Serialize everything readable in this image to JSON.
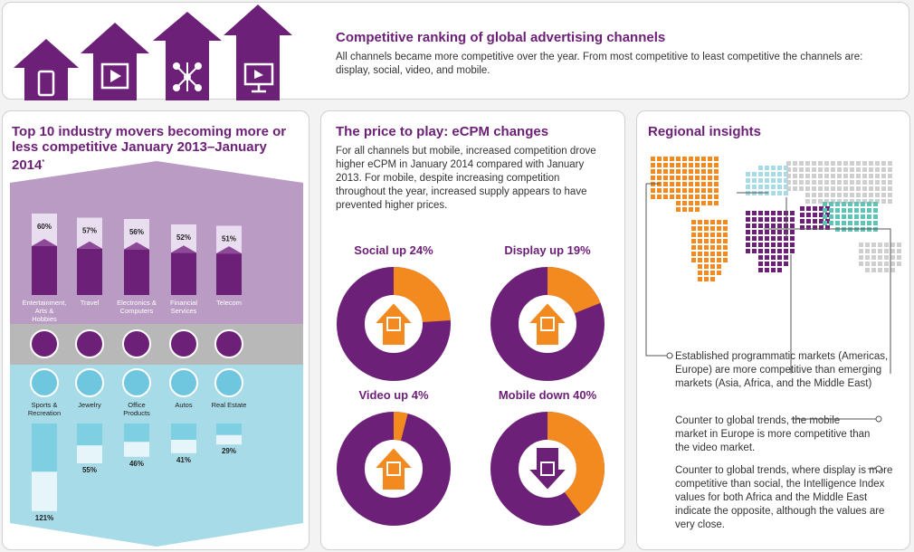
{
  "header": {
    "title": "Competitive ranking of global advertising channels",
    "text": "All channels became more competitive over the year. From most competitive to least competitive the channels are: display, social, video, and mobile.",
    "icons": [
      "mobile-icon",
      "video-icon",
      "social-network-icon",
      "display-monitor-icon"
    ]
  },
  "movers": {
    "title": "Top 10 industry movers becoming more or less competitive January 2013–January 2014",
    "footnote_mark": "*",
    "more": [
      {
        "label": "Entertainment, Arts & Hobbies",
        "pct": "60%",
        "value": 60,
        "icon": "palette-icon"
      },
      {
        "label": "Travel",
        "pct": "57%",
        "value": 57,
        "icon": "airplane-icon"
      },
      {
        "label": "Electronics & Computers",
        "pct": "56%",
        "value": 56,
        "icon": "computer-icon"
      },
      {
        "label": "Financial Services",
        "pct": "52%",
        "value": 52,
        "icon": "money-bag-icon"
      },
      {
        "label": "Telecom",
        "pct": "51%",
        "value": 51,
        "icon": "phone-icon"
      }
    ],
    "less": [
      {
        "label": "Sports & Recreation",
        "pct": "121%",
        "value": 121,
        "icon": "soccer-ball-icon"
      },
      {
        "label": "Jewelry",
        "pct": "55%",
        "value": 55,
        "icon": "ring-icon"
      },
      {
        "label": "Office Products",
        "pct": "46%",
        "value": 46,
        "icon": "paper-icon"
      },
      {
        "label": "Autos",
        "pct": "41%",
        "value": 41,
        "icon": "car-icon"
      },
      {
        "label": "Real Estate",
        "pct": "29%",
        "value": 29,
        "icon": "house-icon"
      }
    ]
  },
  "price": {
    "title": "The price to play: eCPM changes",
    "text": "For all channels but mobile, increased competition drove higher eCPM in January 2014 compared with January 2013. For mobile, despite increasing competition throughout the year, increased supply appears to have prevented higher prices.",
    "donuts": [
      {
        "label": "Social up 24%",
        "value": 24,
        "dir": "up",
        "icon": "social-icon"
      },
      {
        "label": "Display up 19%",
        "value": 19,
        "dir": "up",
        "icon": "display-icon"
      },
      {
        "label": "Video up 4%",
        "value": 4,
        "dir": "up",
        "icon": "video-icon"
      },
      {
        "label": "Mobile down 40%",
        "value": 40,
        "dir": "down",
        "icon": "mobile-icon"
      }
    ]
  },
  "regional": {
    "title": "Regional insights",
    "insights": [
      "Established programmatic markets (Americas, Europe) are more competitive than emerging markets (Asia, Africa, and the Middle East)",
      "Counter to global trends, the mobile market in Europe is more competitive than the video market.",
      "Counter to global trends, where display is more competitive than social, the Intelligence Index values for both Africa and the Middle East indicate the opposite, although the values are very close."
    ]
  },
  "colors": {
    "purple": "#6d2077",
    "orange": "#f28a1f",
    "light_blue": "#a8dbe8",
    "teal": "#5fc4b6",
    "grey": "#cfcfcf"
  }
}
